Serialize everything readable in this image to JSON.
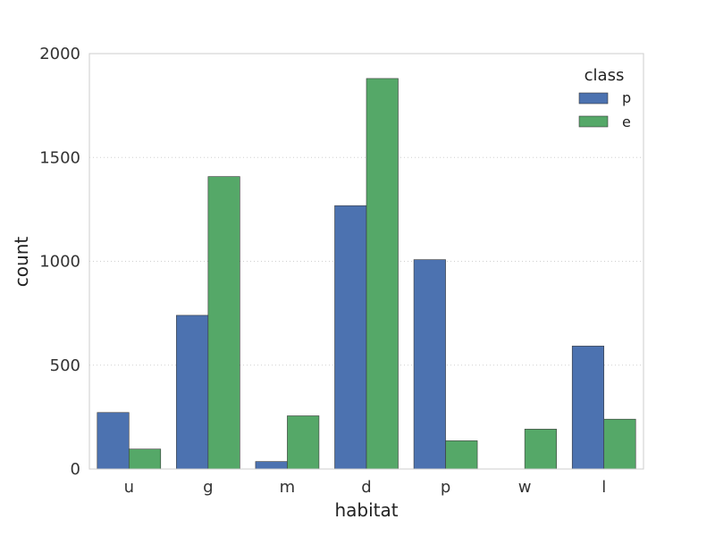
{
  "chart_data": {
    "type": "bar",
    "xlabel": "habitat",
    "ylabel": "count",
    "categories": [
      "u",
      "g",
      "m",
      "d",
      "p",
      "w",
      "l"
    ],
    "series": [
      {
        "name": "p",
        "values": [
          272,
          740,
          36,
          1268,
          1008,
          0,
          592
        ],
        "color": "#4c72b0"
      },
      {
        "name": "e",
        "values": [
          96,
          1408,
          256,
          1880,
          136,
          192,
          240
        ],
        "color": "#55a868"
      }
    ],
    "ylim": [
      0,
      2000
    ],
    "yticks": [
      "0",
      "500",
      "1000",
      "1500",
      "2000"
    ],
    "grid": "horizontal dotted",
    "legend": {
      "title": "class",
      "position": "top-right"
    }
  }
}
